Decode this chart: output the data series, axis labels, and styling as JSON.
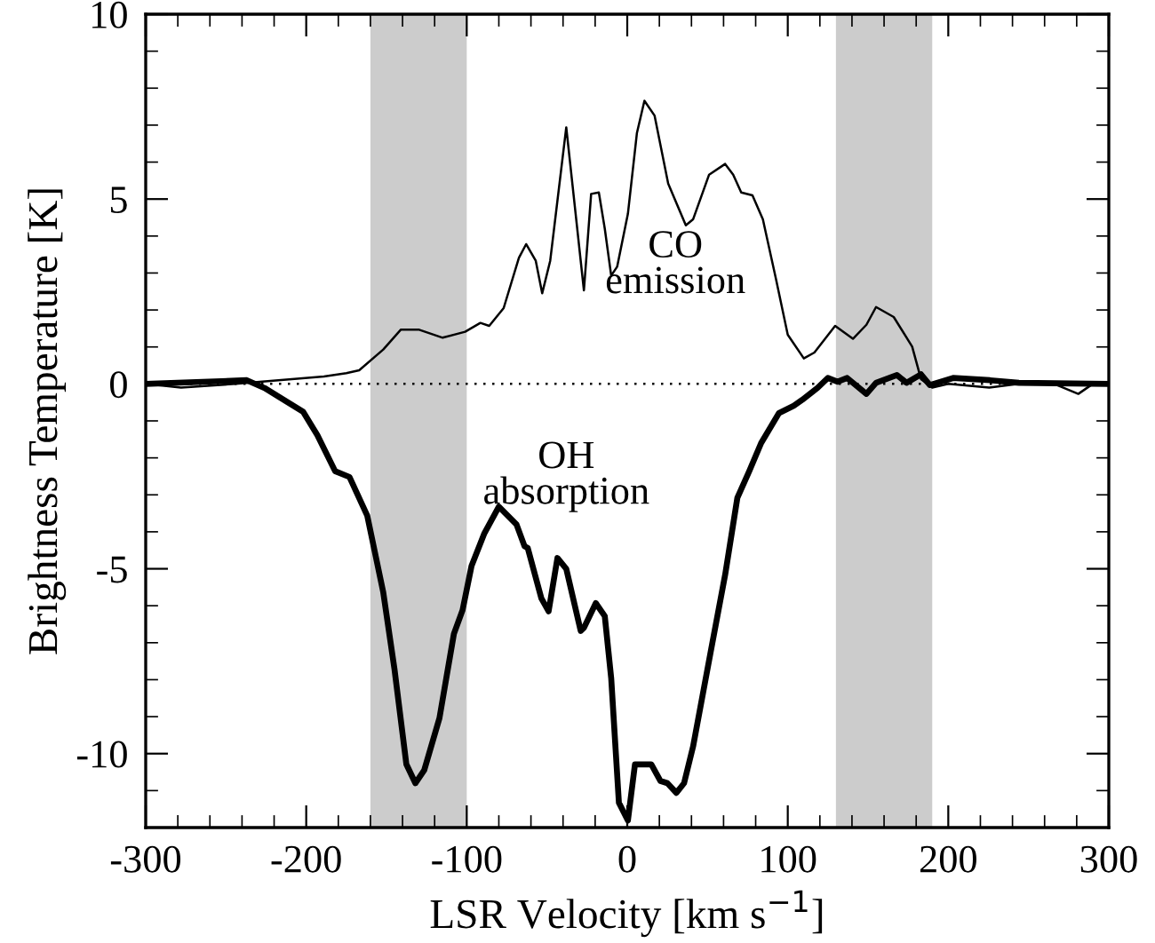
{
  "chart_data": {
    "type": "line",
    "xlabel": "LSR Velocity [km s$^{−1}$]",
    "ylabel": "Brightness Temperature [K]",
    "xlim": [
      -300,
      300
    ],
    "ylim": [
      -12,
      10
    ],
    "xticks": [
      -300,
      -200,
      -100,
      0,
      100,
      200,
      300
    ],
    "yticks": [
      -10,
      -5,
      0,
      5,
      10
    ],
    "grid": false,
    "legend": false,
    "marker": "none",
    "bands": [
      {
        "axis": "x",
        "from": -160,
        "to": -100,
        "color": "#cccccc"
      },
      {
        "axis": "x",
        "from": 130,
        "to": 190,
        "color": "#cccccc"
      }
    ],
    "ref_lines": [
      {
        "axis": "y",
        "value": 0,
        "color": "#000000",
        "line_style": "dotted"
      }
    ],
    "series": [
      {
        "name": "CO emission",
        "color": "#000000",
        "line_style": "solid",
        "x": [
          -300,
          -278,
          -244,
          -189,
          -175,
          -167,
          -152,
          -141,
          -130,
          -115,
          -101,
          -91.5,
          -86,
          -77,
          -67.5,
          -63,
          -57,
          -53,
          -48,
          -38,
          -27,
          -22.5,
          -17.7,
          -14,
          -10,
          -6.3,
          0.4,
          6,
          10.7,
          17,
          25.5,
          36.5,
          41,
          51,
          61,
          66,
          71,
          78,
          84.5,
          92.6,
          100,
          110,
          116.6,
          129.5,
          140.6,
          149,
          155,
          166,
          177.5,
          183,
          190,
          200,
          225.5,
          244,
          266,
          281,
          290,
          300
        ],
        "values": [
          0,
          -0.1,
          0,
          0.2,
          0.29,
          0.37,
          0.93,
          1.47,
          1.47,
          1.25,
          1.41,
          1.65,
          1.57,
          2.05,
          3.41,
          3.78,
          3.33,
          2.45,
          3.33,
          6.94,
          2.53,
          5.14,
          5.18,
          4.2,
          2.93,
          3.17,
          4.6,
          6.78,
          7.66,
          7.26,
          5.42,
          4.29,
          4.45,
          5.66,
          5.95,
          5.66,
          5.18,
          5.1,
          4.45,
          2.85,
          1.33,
          0.69,
          0.85,
          1.57,
          1.22,
          1.6,
          2.08,
          1.81,
          1.01,
          0.13,
          -0.1,
          0,
          -0.1,
          0,
          0,
          -0.27,
          0,
          0
        ]
      },
      {
        "name": "OH absorption",
        "color": "#000000",
        "line_style": "solid",
        "x": [
          -300,
          -237,
          -226,
          -211,
          -202,
          -193,
          -182,
          -173,
          -162,
          -152,
          -145,
          -137.6,
          -132,
          -126.5,
          -117,
          -108,
          -102.6,
          -97,
          -89,
          -80,
          -69,
          -64,
          -62,
          -53.5,
          -49,
          -43.5,
          -38,
          -29,
          -27,
          -19.6,
          -14,
          -10,
          -5.2,
          0.4,
          4.8,
          15,
          20.7,
          25,
          30.6,
          35.4,
          41,
          52,
          61,
          68.6,
          76,
          83.4,
          94.5,
          103.7,
          109,
          118.5,
          125,
          131,
          137,
          149,
          155,
          168,
          174,
          183,
          188.5,
          203,
          226,
          244,
          300
        ],
        "values": [
          0,
          0.1,
          -0.11,
          -0.51,
          -0.75,
          -1.39,
          -2.36,
          -2.52,
          -3.56,
          -5.64,
          -7.72,
          -10.29,
          -10.8,
          -10.45,
          -9.04,
          -6.76,
          -6.12,
          -4.92,
          -4.04,
          -3.32,
          -3.8,
          -4.39,
          -4.44,
          -5.8,
          -6.15,
          -4.71,
          -5.0,
          -6.68,
          -6.6,
          -5.93,
          -6.28,
          -7.96,
          -11.33,
          -11.81,
          -10.29,
          -10.29,
          -10.74,
          -10.8,
          -11.06,
          -10.8,
          -9.81,
          -7.24,
          -5.16,
          -3.08,
          -2.36,
          -1.6,
          -0.79,
          -0.59,
          -0.43,
          -0.11,
          0.16,
          0.06,
          0.16,
          -0.27,
          0.03,
          0.24,
          0.03,
          0.26,
          -0.03,
          0.16,
          0.1,
          0.03,
          0
        ]
      }
    ]
  }
}
